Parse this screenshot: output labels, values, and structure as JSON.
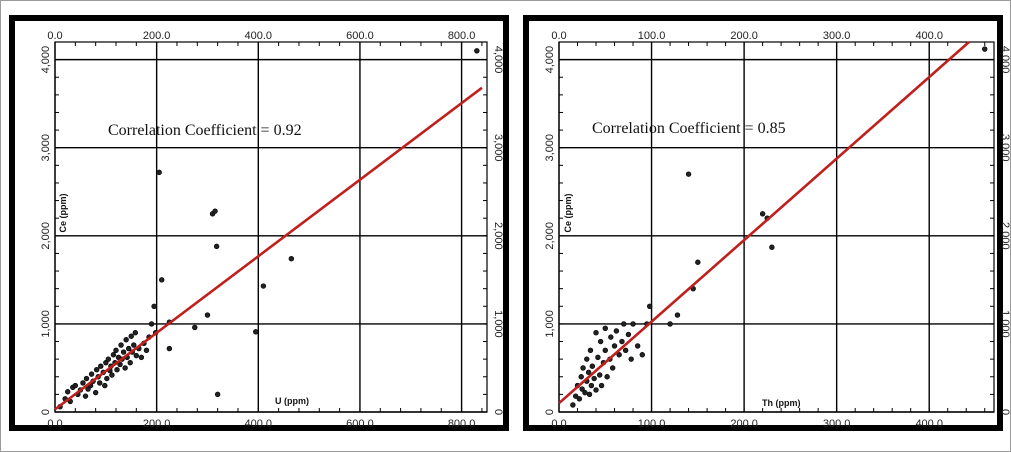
{
  "chart_data": [
    {
      "type": "scatter",
      "title": "",
      "annotation": "Correlation Coefficient = 0.92",
      "xlabel": "U (ppm)",
      "ylabel": "Ce (ppm)",
      "xlim": [
        0,
        850
      ],
      "ylim": [
        0,
        4200
      ],
      "x_ticks": [
        "0.0",
        "200.0",
        "400.0",
        "600.0",
        "800.0"
      ],
      "x_tick_values": [
        0,
        200,
        400,
        600,
        800
      ],
      "y_ticks": [
        "0",
        "1,000",
        "2,000",
        "3,000",
        "4,000"
      ],
      "y_tick_values": [
        0,
        1000,
        2000,
        3000,
        4000
      ],
      "grid": true,
      "regression_line": {
        "x": [
          0,
          840
        ],
        "y": [
          30,
          3680
        ],
        "color": "#c0201d"
      },
      "series": [
        {
          "points": [
            [
              10,
              60
            ],
            [
              20,
              150
            ],
            [
              25,
              230
            ],
            [
              30,
              120
            ],
            [
              35,
              280
            ],
            [
              40,
              300
            ],
            [
              45,
              200
            ],
            [
              50,
              250
            ],
            [
              55,
              330
            ],
            [
              60,
              180
            ],
            [
              62,
              380
            ],
            [
              65,
              260
            ],
            [
              70,
              300
            ],
            [
              72,
              430
            ],
            [
              75,
              350
            ],
            [
              80,
              220
            ],
            [
              82,
              480
            ],
            [
              85,
              400
            ],
            [
              88,
              330
            ],
            [
              90,
              520
            ],
            [
              95,
              450
            ],
            [
              98,
              300
            ],
            [
              100,
              560
            ],
            [
              102,
              380
            ],
            [
              105,
              600
            ],
            [
              108,
              470
            ],
            [
              110,
              520
            ],
            [
              112,
              420
            ],
            [
              115,
              650
            ],
            [
              118,
              560
            ],
            [
              120,
              700
            ],
            [
              122,
              480
            ],
            [
              125,
              620
            ],
            [
              128,
              540
            ],
            [
              130,
              760
            ],
            [
              132,
              600
            ],
            [
              135,
              680
            ],
            [
              138,
              500
            ],
            [
              140,
              820
            ],
            [
              142,
              620
            ],
            [
              145,
              720
            ],
            [
              148,
              560
            ],
            [
              150,
              860
            ],
            [
              152,
              680
            ],
            [
              155,
              760
            ],
            [
              158,
              900
            ],
            [
              160,
              640
            ],
            [
              165,
              720
            ],
            [
              170,
              620
            ],
            [
              175,
              780
            ],
            [
              180,
              700
            ],
            [
              185,
              850
            ],
            [
              190,
              1000
            ],
            [
              195,
              1200
            ],
            [
              198,
              900
            ],
            [
              205,
              2720
            ],
            [
              210,
              1500
            ],
            [
              225,
              1020
            ],
            [
              225,
              720
            ],
            [
              275,
              960
            ],
            [
              300,
              1100
            ],
            [
              310,
              2250
            ],
            [
              315,
              2280
            ],
            [
              318,
              1880
            ],
            [
              320,
              200
            ],
            [
              395,
              910
            ],
            [
              410,
              1430
            ],
            [
              465,
              1740
            ],
            [
              830,
              4100
            ]
          ]
        }
      ]
    },
    {
      "type": "scatter",
      "title": "",
      "annotation": "Correlation Coefficient = 0.85",
      "xlabel": "Th (ppm)",
      "ylabel": "Ce (ppm)",
      "xlim": [
        0,
        470
      ],
      "ylim": [
        0,
        4200
      ],
      "x_ticks": [
        "0.0",
        "100.0",
        "200.0",
        "300.0",
        "400.0"
      ],
      "x_tick_values": [
        0,
        100,
        200,
        300,
        400
      ],
      "y_ticks": [
        "0",
        "1,000",
        "2,000",
        "3,000",
        "4,000"
      ],
      "y_tick_values": [
        0,
        1000,
        2000,
        3000,
        4000
      ],
      "grid": true,
      "regression_line": {
        "x": [
          0,
          470
        ],
        "y": [
          100,
          4450
        ],
        "color": "#c0201d"
      },
      "series": [
        {
          "points": [
            [
              15,
              80
            ],
            [
              18,
              180
            ],
            [
              20,
              300
            ],
            [
              22,
              150
            ],
            [
              24,
              400
            ],
            [
              25,
              260
            ],
            [
              26,
              500
            ],
            [
              28,
              220
            ],
            [
              30,
              350
            ],
            [
              30,
              600
            ],
            [
              32,
              450
            ],
            [
              33,
              200
            ],
            [
              34,
              700
            ],
            [
              35,
              300
            ],
            [
              36,
              520
            ],
            [
              38,
              380
            ],
            [
              40,
              900
            ],
            [
              40,
              250
            ],
            [
              42,
              620
            ],
            [
              44,
              420
            ],
            [
              45,
              800
            ],
            [
              46,
              300
            ],
            [
              48,
              560
            ],
            [
              50,
              700
            ],
            [
              50,
              950
            ],
            [
              52,
              400
            ],
            [
              55,
              600
            ],
            [
              56,
              850
            ],
            [
              58,
              500
            ],
            [
              60,
              750
            ],
            [
              62,
              920
            ],
            [
              65,
              650
            ],
            [
              68,
              800
            ],
            [
              70,
              1000
            ],
            [
              72,
              700
            ],
            [
              75,
              880
            ],
            [
              78,
              600
            ],
            [
              80,
              1000
            ],
            [
              85,
              750
            ],
            [
              90,
              650
            ],
            [
              95,
              1000
            ],
            [
              98,
              1200
            ],
            [
              120,
              1000
            ],
            [
              128,
              1100
            ],
            [
              140,
              2700
            ],
            [
              145,
              1400
            ],
            [
              150,
              1700
            ],
            [
              220,
              2250
            ],
            [
              225,
              2200
            ],
            [
              230,
              1870
            ],
            [
              460,
              4120
            ]
          ]
        }
      ]
    }
  ]
}
